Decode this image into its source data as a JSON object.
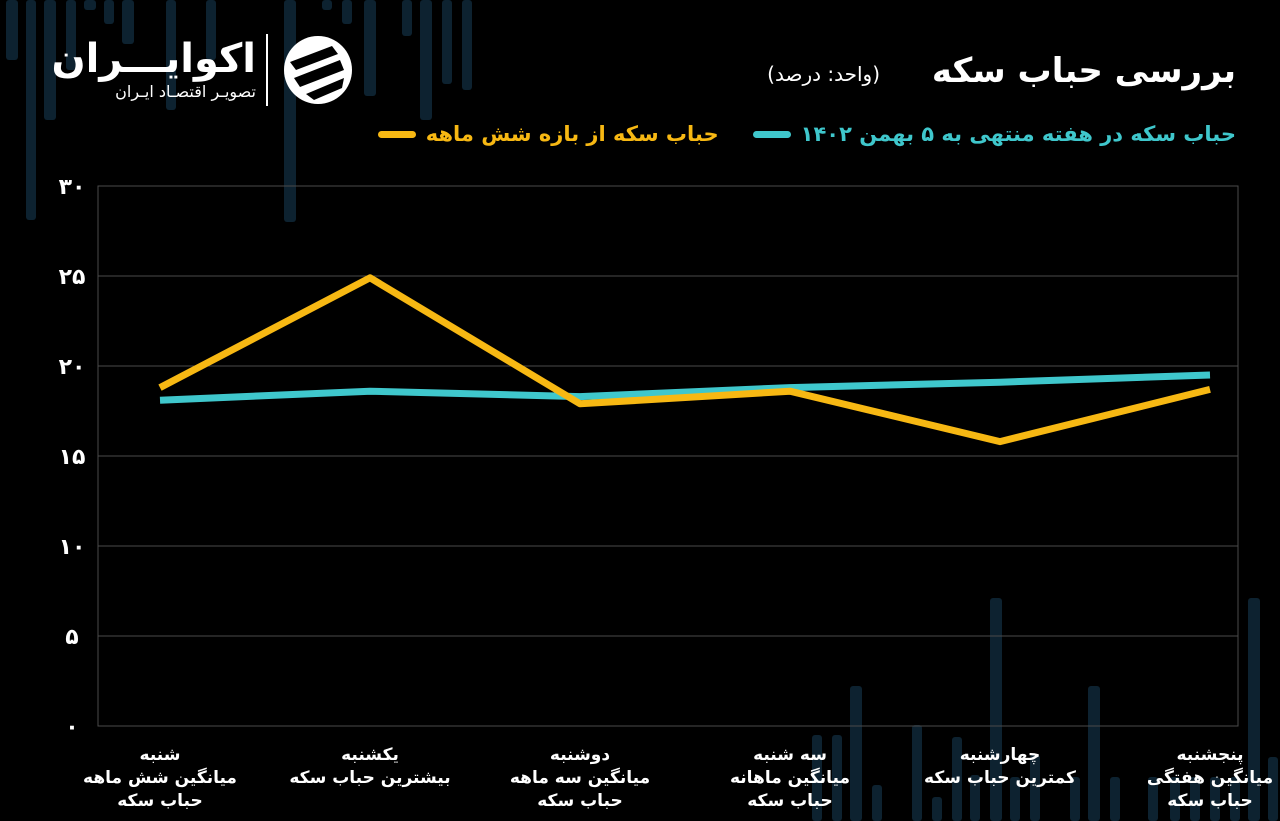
{
  "brand": {
    "name": "اکوایـــران",
    "tagline": "تصویـر اقتصـاد ایـران"
  },
  "header": {
    "title": "بررسی حباب سکه",
    "unit": "(واحد: درصد)"
  },
  "colors": {
    "background": "#000000",
    "six_month": "#F7B813",
    "weekly": "#3FC7CC",
    "grid": "#4a4a4a",
    "deco": "#0d2230"
  },
  "chart_data": {
    "type": "line",
    "title": "بررسی حباب سکه",
    "unit": "(واحد: درصد)",
    "categories": [
      [
        "شنبه",
        "میانگین شش ماهه",
        "حباب سکه"
      ],
      [
        "یکشنبه",
        "بیشترین حباب سکه"
      ],
      [
        "دوشنبه",
        "میانگین سه ماهه",
        "حباب سکه"
      ],
      [
        "سه شنبه",
        "میانگین ماهانه",
        "حباب سکه"
      ],
      [
        "چهارشنبه",
        "کمترین حباب سکه"
      ],
      [
        "پنجشنبه",
        "میانگین هفتگی",
        "حباب سکه"
      ]
    ],
    "series": [
      {
        "name": "حباب سکه از بازه شش ماهه",
        "color": "#F7B813",
        "values": [
          18.8,
          24.9,
          17.9,
          18.6,
          15.8,
          18.7
        ]
      },
      {
        "name": "حباب سکه در هفته منتهی به ۵ بهمن ۱۴۰۲",
        "color": "#3FC7CC",
        "values": [
          18.1,
          18.6,
          18.3,
          18.8,
          19.1,
          19.5
        ]
      }
    ],
    "y_ticks": [
      "۰",
      "۵",
      "۱۰",
      "۱۵",
      "۲۰",
      "۲۵",
      "۳۰"
    ],
    "ylim": [
      0,
      30
    ],
    "grid": true,
    "legend_position": "top"
  }
}
